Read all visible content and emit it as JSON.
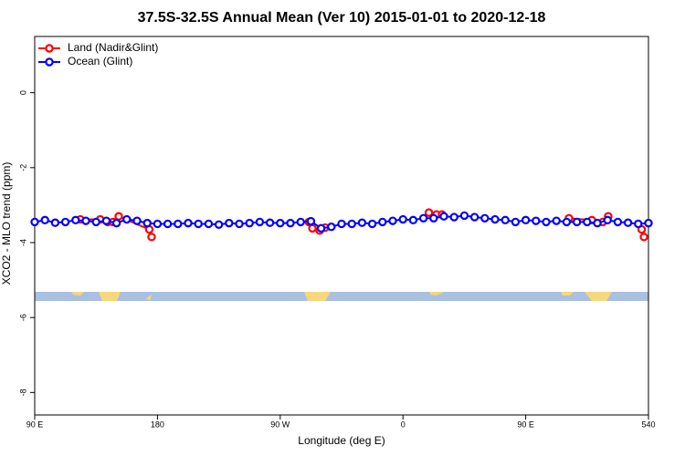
{
  "chart_data": {
    "type": "line",
    "title": "37.5S-32.5S Annual Mean (Ver 10)   2015-01-01 to 2020-12-18",
    "x_label": "Longitude (deg E)",
    "y_label": "XCO2 - MLO trend (ppm)",
    "xlim": [
      90,
      540
    ],
    "ylim": [
      -8.6,
      1.5
    ],
    "xticks": [
      {
        "value": 90,
        "label": "90 E"
      },
      180,
      {
        "value": 270,
        "label": "90 W"
      },
      {
        "value": 360,
        "label": "0"
      },
      {
        "value": 450,
        "label": "90 E"
      },
      540
    ],
    "yticks": [
      0,
      -2,
      -4,
      -6,
      -8
    ],
    "legend": "top-left",
    "series": [
      {
        "name": "Land (Nadir&Glint)",
        "color": "#ff0000",
        "x": [
          123.5,
          138,
          143.5,
          147.5,
          151.6,
          174,
          175.7,
          230,
          291,
          293.6,
          299,
          303,
          340,
          379,
          384.6,
          388.6,
          440,
          481.7,
          498.5,
          506.5,
          510.5,
          520,
          535,
          536.7
        ],
        "values": [
          -3.38,
          -3.38,
          -3.45,
          -3.45,
          -3.3,
          -3.65,
          -3.85,
          null,
          -3.45,
          -3.62,
          -3.68,
          -3.6,
          null,
          -3.2,
          -3.25,
          -3.25,
          null,
          -3.35,
          -3.4,
          -3.45,
          -3.3,
          null,
          -3.65,
          -3.85
        ]
      },
      {
        "name": "Ocean (Glint)",
        "color": "#0000ff",
        "x": [
          90,
          97.5,
          105,
          112.5,
          120,
          127.5,
          135,
          142.5,
          150,
          157.5,
          165,
          172.5,
          180,
          187.5,
          195,
          202.5,
          210,
          217.5,
          225,
          232.5,
          240,
          247.5,
          255,
          262.5,
          270,
          277.5,
          285,
          292.5,
          300,
          307.5,
          315,
          322.5,
          330,
          337.5,
          345,
          352.5,
          360,
          367.5,
          375,
          382.5,
          390,
          397.5,
          405,
          412.5,
          420,
          427.5,
          435,
          442.5,
          450,
          457.5,
          465,
          472.5,
          480,
          487.5,
          495,
          502.5,
          510,
          517.5,
          525,
          532.5,
          540
        ],
        "values": [
          -3.45,
          -3.4,
          -3.47,
          -3.45,
          -3.4,
          -3.42,
          -3.45,
          -3.42,
          -3.48,
          -3.38,
          -3.42,
          -3.48,
          -3.5,
          -3.5,
          -3.5,
          -3.48,
          -3.5,
          -3.5,
          -3.52,
          -3.48,
          -3.5,
          -3.48,
          -3.45,
          -3.47,
          -3.48,
          -3.48,
          -3.45,
          -3.43,
          -3.62,
          -3.58,
          -3.5,
          -3.5,
          -3.47,
          -3.5,
          -3.45,
          -3.42,
          -3.38,
          -3.4,
          -3.35,
          -3.35,
          -3.3,
          -3.32,
          -3.28,
          -3.32,
          -3.35,
          -3.38,
          -3.4,
          -3.45,
          -3.4,
          -3.42,
          -3.45,
          -3.42,
          -3.45,
          -3.45,
          -3.45,
          -3.48,
          -3.4,
          -3.45,
          -3.47,
          -3.5,
          -3.48
        ]
      }
    ]
  }
}
